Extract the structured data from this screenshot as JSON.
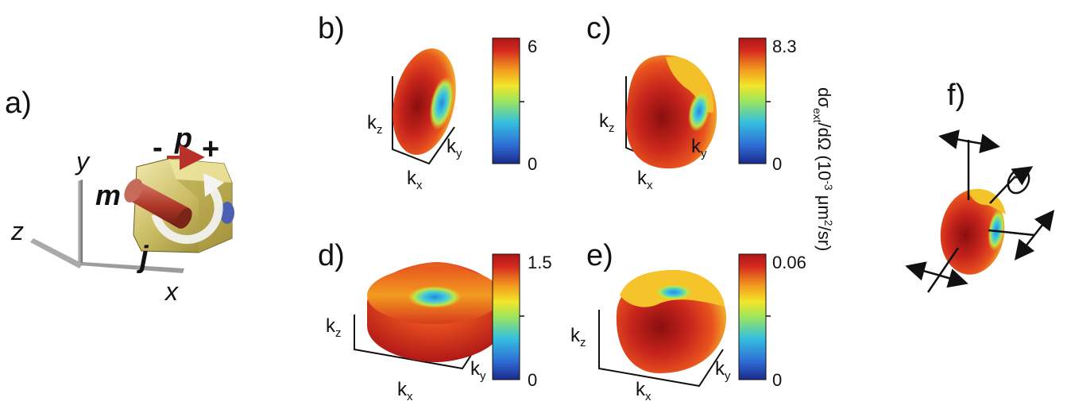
{
  "figure": {
    "panel_labels": {
      "a": "a)",
      "b": "b)",
      "c": "c)",
      "d": "d)",
      "e": "e)",
      "f": "f)"
    },
    "panel_a": {
      "p": "p",
      "minus": "-",
      "plus": "+",
      "m": "m",
      "j": "j",
      "x": "x",
      "y": "y",
      "z": "z"
    },
    "axis_letters": {
      "k": "k",
      "x": "x",
      "y": "y",
      "z": "z"
    },
    "colorbars": [
      {
        "panel": "b",
        "max": "6",
        "min": "0"
      },
      {
        "panel": "c",
        "max": "8.3",
        "min": "0"
      },
      {
        "panel": "d",
        "max": "1.5",
        "min": "0"
      },
      {
        "panel": "e",
        "max": "0.06",
        "min": "0"
      }
    ],
    "colorbar_label": {
      "d": "d",
      "sigma": "σ",
      "ext": "ext",
      "slash_d_omega": "/dΩ (10",
      "exp": "-3",
      "um": " μm",
      "two": "2",
      "sr": "/sr)"
    },
    "colormap": [
      "#1a2a8c",
      "#2f6fd6",
      "#35c0e0",
      "#9ee65a",
      "#f2e62a",
      "#f39a1e",
      "#d42a1e",
      "#8a0f0f"
    ]
  }
}
